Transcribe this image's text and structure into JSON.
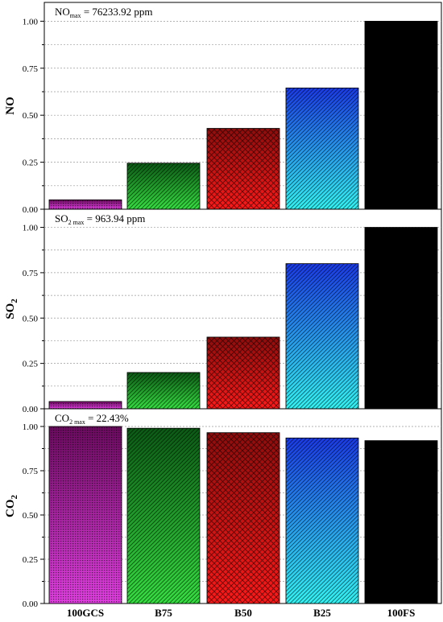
{
  "chart_data": [
    {
      "type": "bar",
      "ylabel": "NO",
      "annotation": {
        "pre": "NO",
        "sub": "max",
        "post": " = 76233.92 ppm"
      },
      "categories": [
        "100GCS",
        "B75",
        "B50",
        "B25",
        "100FS"
      ],
      "values": [
        0.05,
        0.245,
        0.43,
        0.645,
        1.0
      ],
      "ylim": [
        0,
        1.1
      ],
      "yticks": [
        "0.00",
        "0.25",
        "0.50",
        "0.75",
        "1.00"
      ],
      "grid": true
    },
    {
      "type": "bar",
      "ylabel": "SO",
      "ylabel_sub": "2",
      "annotation": {
        "pre": "SO",
        "sub": "2 max",
        "post": " = 963.94 ppm"
      },
      "categories": [
        "100GCS",
        "B75",
        "B50",
        "B25",
        "100FS"
      ],
      "values": [
        0.04,
        0.2,
        0.395,
        0.8,
        1.0
      ],
      "ylim": [
        0,
        1.1
      ],
      "yticks": [
        "0.00",
        "0.25",
        "0.50",
        "0.75",
        "1.00"
      ],
      "grid": true
    },
    {
      "type": "bar",
      "ylabel": "CO",
      "ylabel_sub": "2",
      "annotation": {
        "pre": "CO",
        "sub": "2 max",
        "post": " = 22.43%"
      },
      "categories": [
        "100GCS",
        "B75",
        "B50",
        "B25",
        "100FS"
      ],
      "values": [
        1.0,
        0.99,
        0.965,
        0.935,
        0.92
      ],
      "ylim": [
        0,
        1.1
      ],
      "yticks": [
        "0.00",
        "0.25",
        "0.50",
        "0.75",
        "1.00"
      ],
      "grid": true
    }
  ],
  "bar_colors": [
    {
      "top": "#6a0a5e",
      "bottom": "#e040e0"
    },
    {
      "top": "#0a5a14",
      "bottom": "#34e040"
    },
    {
      "top": "#8e0c0c",
      "bottom": "#ff1818"
    },
    {
      "top": "#1a3ae8",
      "bottom": "#30f4f4"
    },
    {
      "top": "#000000",
      "bottom": "#000000"
    }
  ]
}
